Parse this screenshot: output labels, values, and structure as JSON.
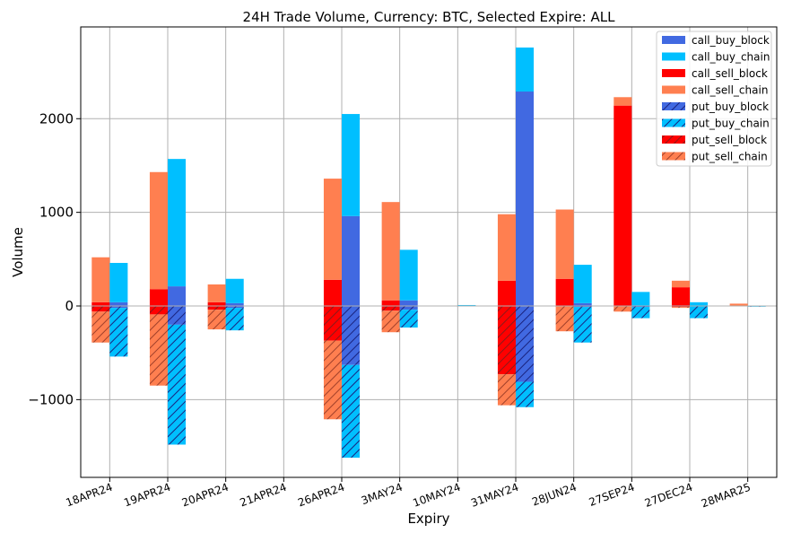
{
  "chart_data": {
    "type": "bar",
    "title": "24H Trade Volume, Currency: BTC, Selected Expire: ALL",
    "xlabel": "Expiry",
    "ylabel": "Volume",
    "ylim": [
      -1830,
      2980
    ],
    "yticks": [
      -1000,
      0,
      1000,
      2000
    ],
    "ytick_labels": [
      "−1000",
      "0",
      "1000",
      "2000"
    ],
    "grid": true,
    "legend_position": "top-right",
    "categories": [
      "18APR24",
      "19APR24",
      "20APR24",
      "21APR24",
      "26APR24",
      "3MAY24",
      "10MAY24",
      "31MAY24",
      "28JUN24",
      "27SEP24",
      "27DEC24",
      "28MAR25"
    ],
    "series": [
      {
        "name": "call_buy_block",
        "color": "#4169e1",
        "hatch": false,
        "group": "buy",
        "values": [
          40,
          210,
          30,
          0,
          960,
          60,
          0,
          2290,
          30,
          0,
          0,
          0
        ]
      },
      {
        "name": "call_buy_chain",
        "color": "#00bfff",
        "hatch": false,
        "group": "buy",
        "values": [
          420,
          1360,
          260,
          0,
          1090,
          540,
          10,
          470,
          410,
          150,
          40,
          5
        ]
      },
      {
        "name": "call_sell_block",
        "color": "#ff0000",
        "hatch": false,
        "group": "sell",
        "values": [
          40,
          180,
          40,
          0,
          280,
          60,
          0,
          270,
          290,
          2140,
          200,
          0
        ]
      },
      {
        "name": "call_sell_chain",
        "color": "#ff7f50",
        "hatch": false,
        "group": "sell",
        "values": [
          480,
          1250,
          190,
          0,
          1080,
          1050,
          0,
          710,
          740,
          90,
          70,
          25
        ]
      },
      {
        "name": "put_buy_block",
        "color": "#4169e1",
        "hatch": true,
        "group": "buy",
        "values": [
          -20,
          -200,
          -20,
          0,
          -630,
          -40,
          0,
          -810,
          -10,
          -10,
          0,
          0
        ]
      },
      {
        "name": "put_buy_chain",
        "color": "#00bfff",
        "hatch": true,
        "group": "buy",
        "values": [
          -520,
          -1280,
          -240,
          0,
          -990,
          -190,
          0,
          -270,
          -380,
          -120,
          -130,
          -5
        ]
      },
      {
        "name": "put_sell_block",
        "color": "#ff0000",
        "hatch": true,
        "group": "sell",
        "values": [
          -60,
          -90,
          -40,
          0,
          -370,
          -50,
          0,
          -730,
          0,
          0,
          -10,
          0
        ]
      },
      {
        "name": "put_sell_chain",
        "color": "#ff7f50",
        "hatch": true,
        "group": "sell",
        "values": [
          -330,
          -760,
          -210,
          0,
          -840,
          -230,
          0,
          -330,
          -270,
          -60,
          -10,
          0
        ]
      }
    ]
  }
}
